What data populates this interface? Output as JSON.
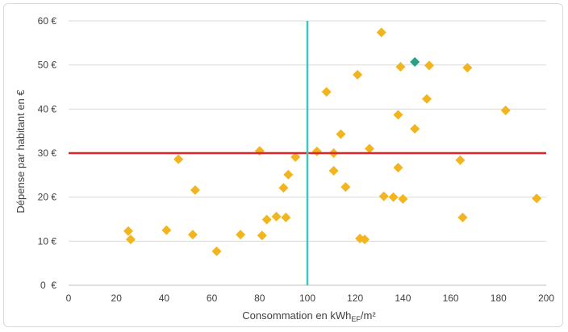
{
  "chart_data": {
    "type": "scatter",
    "title": "",
    "xlabel": {
      "prefix": "Consommation en kWh",
      "subscript": "EF",
      "suffix": "/m²"
    },
    "ylabel": "Dépense par habitant en €",
    "xlim": [
      0,
      200
    ],
    "ylim": [
      0,
      60
    ],
    "x_ticks": [
      "0",
      "20",
      "40",
      "60",
      "80",
      "100",
      "120",
      "140",
      "160",
      "180",
      "200"
    ],
    "y_ticks": [
      "0  €",
      "10 €",
      "20 €",
      "30 €",
      "40 €",
      "50 €",
      "60 €"
    ],
    "grid": "horizontal",
    "reference_lines": [
      {
        "orientation": "horizontal",
        "value": 30,
        "color": "#e0262b"
      },
      {
        "orientation": "vertical",
        "value": 100,
        "color": "#3cc8c0"
      }
    ],
    "marker_color": "#f2b51d",
    "highlight_color": "#27a084",
    "points": [
      {
        "x": 25,
        "y": 12.3
      },
      {
        "x": 26,
        "y": 10.4
      },
      {
        "x": 41,
        "y": 12.5
      },
      {
        "x": 46,
        "y": 28.6
      },
      {
        "x": 52,
        "y": 11.5
      },
      {
        "x": 53,
        "y": 21.6
      },
      {
        "x": 62,
        "y": 7.7
      },
      {
        "x": 72,
        "y": 11.5
      },
      {
        "x": 80,
        "y": 30.5
      },
      {
        "x": 81,
        "y": 11.3
      },
      {
        "x": 83,
        "y": 14.9
      },
      {
        "x": 87,
        "y": 15.6
      },
      {
        "x": 90,
        "y": 22.1
      },
      {
        "x": 91,
        "y": 15.4
      },
      {
        "x": 92,
        "y": 25.1
      },
      {
        "x": 95,
        "y": 29.1
      },
      {
        "x": 104,
        "y": 30.4
      },
      {
        "x": 108,
        "y": 43.9
      },
      {
        "x": 111,
        "y": 26.0
      },
      {
        "x": 111,
        "y": 30.0
      },
      {
        "x": 114,
        "y": 34.3
      },
      {
        "x": 116,
        "y": 22.3
      },
      {
        "x": 121,
        "y": 47.8
      },
      {
        "x": 122,
        "y": 10.6
      },
      {
        "x": 124,
        "y": 10.4
      },
      {
        "x": 126,
        "y": 31.0
      },
      {
        "x": 131,
        "y": 57.4
      },
      {
        "x": 132,
        "y": 20.2
      },
      {
        "x": 136,
        "y": 20.0
      },
      {
        "x": 138,
        "y": 26.7
      },
      {
        "x": 138,
        "y": 38.7
      },
      {
        "x": 139,
        "y": 49.6
      },
      {
        "x": 140,
        "y": 19.6
      },
      {
        "x": 145,
        "y": 35.5
      },
      {
        "x": 145,
        "y": 50.7,
        "highlight": true
      },
      {
        "x": 150,
        "y": 42.3
      },
      {
        "x": 151,
        "y": 49.9
      },
      {
        "x": 164,
        "y": 28.4
      },
      {
        "x": 165,
        "y": 15.4
      },
      {
        "x": 167,
        "y": 49.4
      },
      {
        "x": 183,
        "y": 39.7
      },
      {
        "x": 196,
        "y": 19.7
      }
    ]
  }
}
